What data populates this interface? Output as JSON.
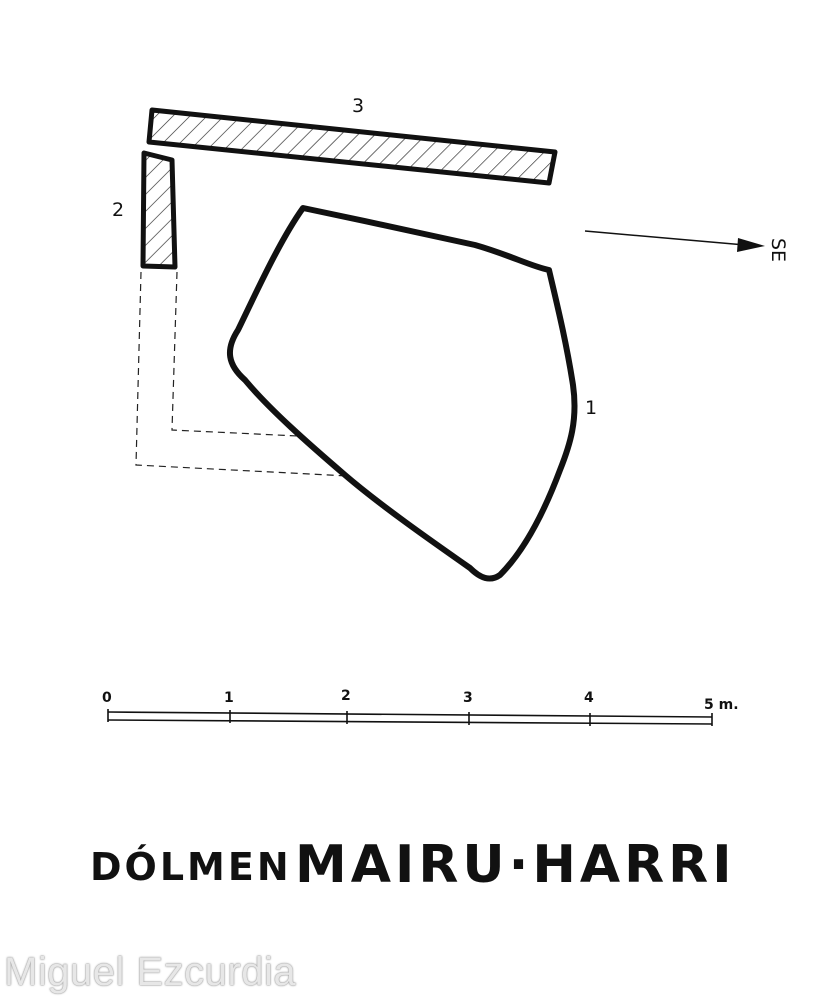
{
  "stones": [
    {
      "id": "1",
      "label": "1"
    },
    {
      "id": "2",
      "label": "2"
    },
    {
      "id": "3",
      "label": "3"
    }
  ],
  "orientation": {
    "label": "SE",
    "icon": "north-arrow-icon"
  },
  "scale": {
    "ticks": [
      "0",
      "1",
      "2",
      "3",
      "4"
    ],
    "end_label": "5 m."
  },
  "title": {
    "prefix": "DÓLMEN",
    "name": "MAIRU·HARRI"
  },
  "watermark": "Miguel Ezcurdia"
}
